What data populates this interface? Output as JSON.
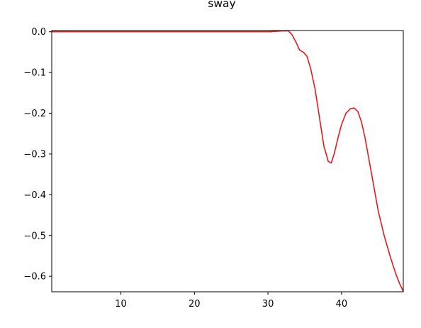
{
  "chart_data": {
    "type": "line",
    "title": "sway",
    "xlabel": "",
    "ylabel": "",
    "xlim": [
      0.6,
      48.4
    ],
    "ylim": [
      -0.638,
      0.003
    ],
    "grid": false,
    "x_ticks": [
      10,
      20,
      30,
      40
    ],
    "x_tick_labels": [
      "10",
      "20",
      "30",
      "40"
    ],
    "y_ticks": [
      0.0,
      -0.1,
      -0.2,
      -0.3,
      -0.4,
      -0.5,
      -0.6
    ],
    "y_tick_labels": [
      "0.0",
      "−0.1",
      "−0.2",
      "−0.3",
      "−0.4",
      "−0.5",
      "−0.6"
    ],
    "series": [
      {
        "color": "#008000",
        "x": [
          0.6,
          10,
          20,
          30.5
        ],
        "y": [
          0.0,
          0.0,
          0.0,
          0.0
        ]
      },
      {
        "color": "#e41a1c",
        "x": [
          0.6,
          30.0,
          31.0,
          32.0,
          32.8,
          33.3,
          33.8,
          34.3,
          34.8,
          35.3,
          35.8,
          36.4,
          37.0,
          37.6,
          38.2,
          38.6,
          39.0,
          39.5,
          40.0,
          40.6,
          41.2,
          41.7,
          42.2,
          42.7,
          43.2,
          43.8,
          44.4,
          45.0,
          45.8,
          46.6,
          47.4,
          48.0,
          48.4
        ],
        "y": [
          0.0,
          0.0,
          0.001,
          0.002,
          0.002,
          -0.008,
          -0.025,
          -0.045,
          -0.05,
          -0.06,
          -0.09,
          -0.14,
          -0.21,
          -0.28,
          -0.318,
          -0.322,
          -0.3,
          -0.262,
          -0.228,
          -0.2,
          -0.189,
          -0.187,
          -0.195,
          -0.22,
          -0.26,
          -0.32,
          -0.38,
          -0.44,
          -0.5,
          -0.55,
          -0.595,
          -0.622,
          -0.637
        ]
      }
    ]
  }
}
